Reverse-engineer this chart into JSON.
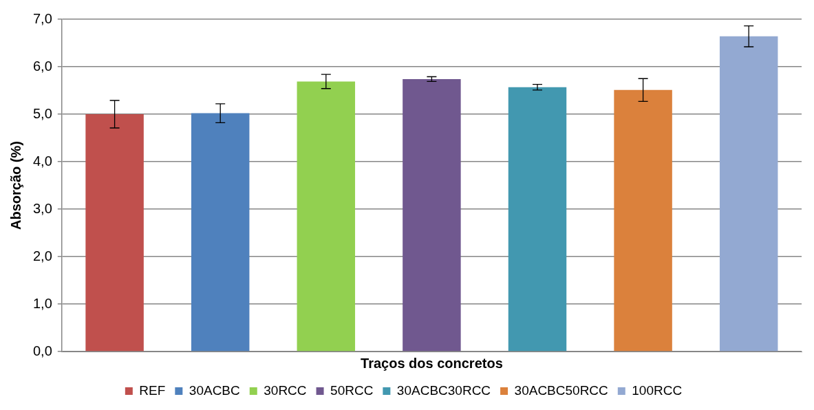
{
  "chart_data": {
    "type": "bar",
    "ylabel": "Absorção (%)",
    "xlabel": "Traços dos concretos",
    "categories": [
      null,
      null,
      null,
      null,
      null,
      null,
      null
    ],
    "series": [
      {
        "name": "REF",
        "color": "#c0504d",
        "values": [
          5.0,
          null,
          null,
          null,
          null,
          null,
          null
        ],
        "errors": [
          0.29,
          null,
          null,
          null,
          null,
          null,
          null
        ]
      },
      {
        "name": "30ACBC",
        "color": "#4f81bd",
        "values": [
          null,
          5.02,
          null,
          null,
          null,
          null,
          null
        ],
        "errors": [
          null,
          0.2,
          null,
          null,
          null,
          null,
          null
        ]
      },
      {
        "name": "30RCC",
        "color": "#92d050",
        "values": [
          null,
          null,
          5.69,
          null,
          null,
          null,
          null
        ],
        "errors": [
          null,
          null,
          0.15,
          null,
          null,
          null,
          null
        ]
      },
      {
        "name": "50RCC",
        "color": "#70588f",
        "values": [
          null,
          null,
          null,
          5.74,
          null,
          null,
          null
        ],
        "errors": [
          null,
          null,
          null,
          0.05,
          null,
          null,
          null
        ]
      },
      {
        "name": "30ACBC30RCC",
        "color": "#4298b0",
        "values": [
          null,
          null,
          null,
          null,
          5.57,
          null,
          null
        ],
        "errors": [
          null,
          null,
          null,
          null,
          0.06,
          null,
          null
        ]
      },
      {
        "name": "30ACBC50RCC",
        "color": "#db813c",
        "values": [
          null,
          null,
          null,
          null,
          null,
          5.51,
          null
        ],
        "errors": [
          null,
          null,
          null,
          null,
          null,
          0.24,
          null
        ]
      },
      {
        "name": "100RCC",
        "color": "#93a9d2",
        "values": [
          null,
          null,
          null,
          null,
          null,
          null,
          6.64
        ],
        "errors": [
          null,
          null,
          null,
          null,
          null,
          null,
          0.22
        ]
      }
    ],
    "ylim": [
      0,
      7
    ],
    "yticks": [
      {
        "value": 0,
        "label": "0,0"
      },
      {
        "value": 1,
        "label": "1,0"
      },
      {
        "value": 2,
        "label": "2,0"
      },
      {
        "value": 3,
        "label": "3,0"
      },
      {
        "value": 4,
        "label": "4,0"
      },
      {
        "value": 5,
        "label": "5,0"
      },
      {
        "value": 6,
        "label": "6,0"
      },
      {
        "value": 7,
        "label": "7,0"
      }
    ],
    "grid": "y",
    "legend": "bottom"
  }
}
